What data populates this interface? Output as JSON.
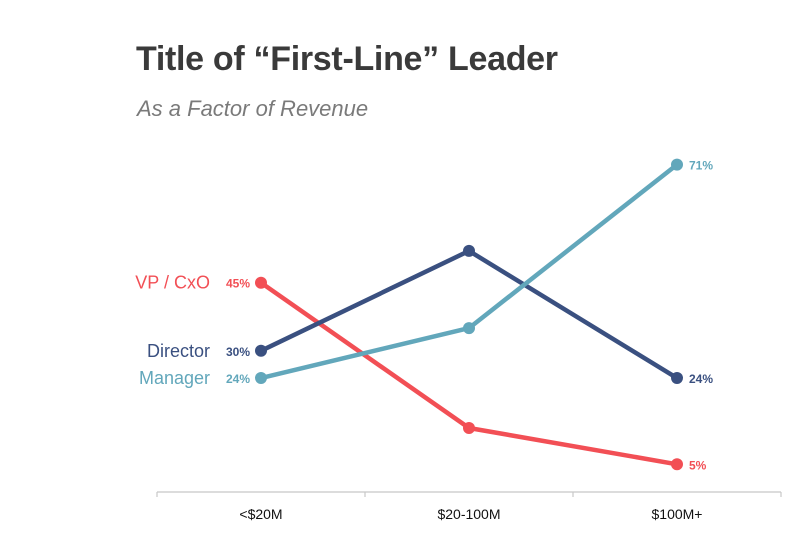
{
  "chart_data": {
    "type": "line",
    "title": "Title of “First-Line” Leader",
    "subtitle": "As a Factor of Revenue",
    "categories": [
      "<$20M",
      "$20-100M",
      "$100M+"
    ],
    "ylim": [
      0,
      80
    ],
    "grid": false,
    "legend": "inline-left",
    "series": [
      {
        "name": "VP / CxO",
        "color": "#f24f55",
        "values": [
          45,
          13,
          5
        ],
        "labels": [
          "45%",
          "",
          "5%"
        ]
      },
      {
        "name": "Director",
        "color": "#3a5080",
        "values": [
          30,
          52,
          24
        ],
        "labels": [
          "30%",
          "",
          "24%"
        ]
      },
      {
        "name": "Manager",
        "color": "#62a7bb",
        "values": [
          24,
          35,
          71
        ],
        "labels": [
          "24%",
          "",
          "71%"
        ]
      }
    ]
  }
}
